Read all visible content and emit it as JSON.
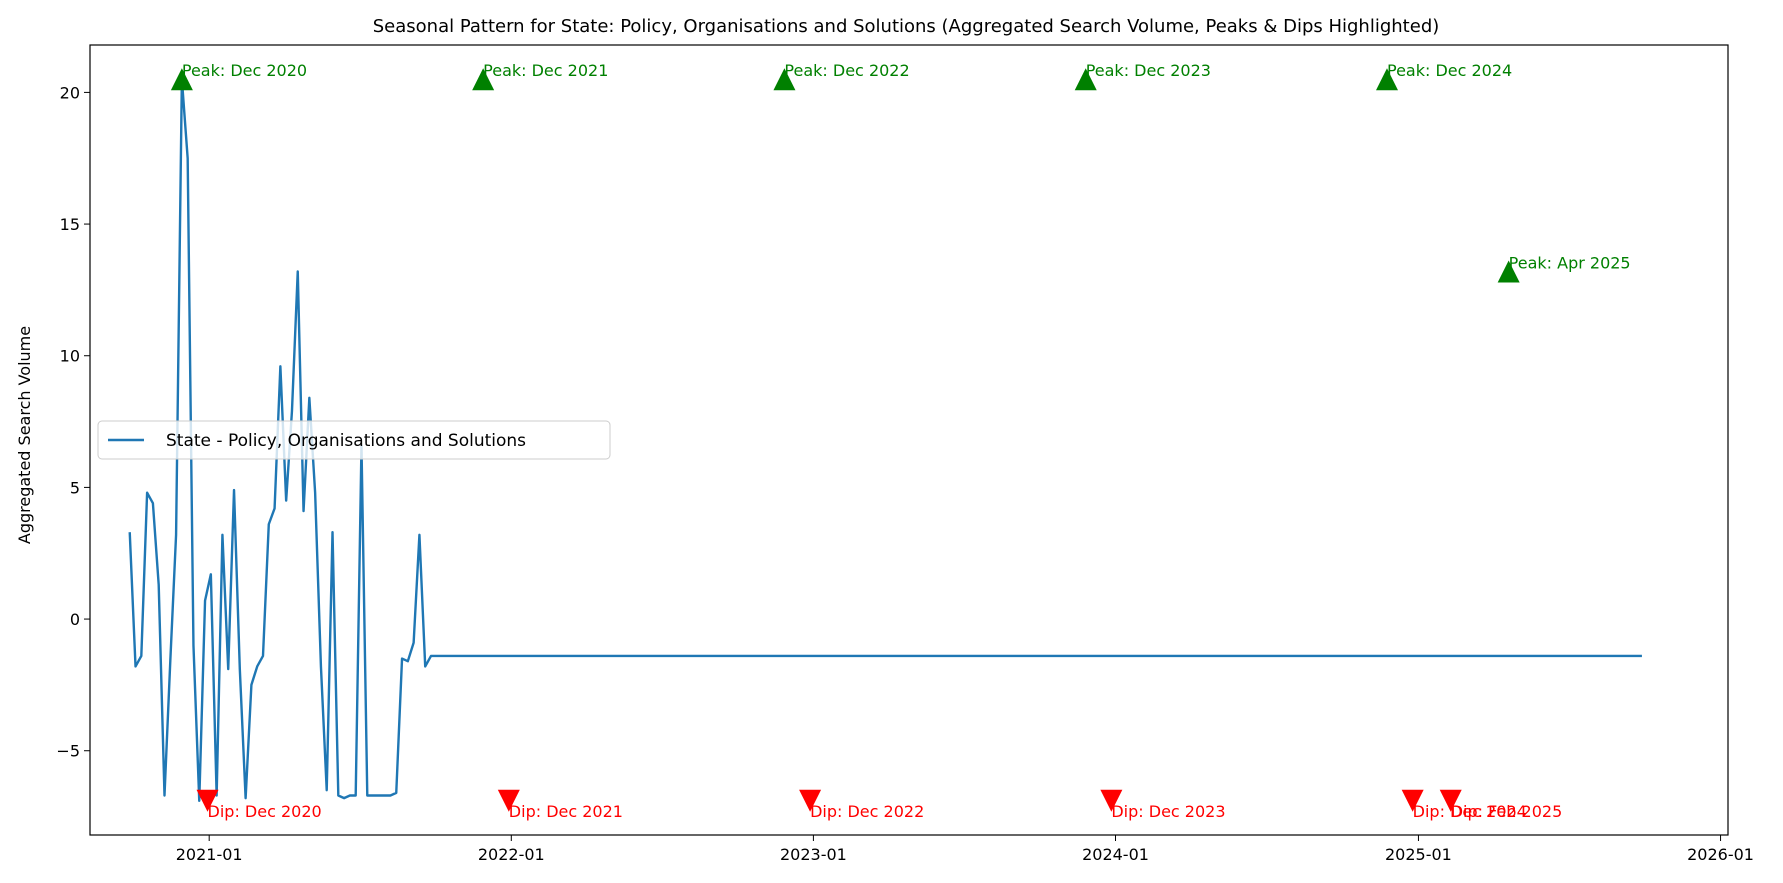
{
  "chart_data": {
    "type": "line",
    "title": "Seasonal Pattern for State: Policy, Organisations and Solutions (Aggregated Search Volume, Peaks & Dips Highlighted)",
    "xlabel": "",
    "ylabel": "Aggregated Search Volume",
    "xlim": [
      "2020-08-10",
      "2026-01-10"
    ],
    "ylim": [
      -8.2,
      21.8
    ],
    "x_ticks": [
      "2021-01",
      "2022-01",
      "2023-01",
      "2024-01",
      "2025-01",
      "2026-01"
    ],
    "y_ticks": [
      -5,
      0,
      5,
      10,
      15,
      20
    ],
    "y_tick_labels": [
      "−5",
      "0",
      "5",
      "10",
      "15",
      "20"
    ],
    "grid": false,
    "legend": {
      "position": "center-left",
      "entries": [
        "State - Policy, Organisations and Solutions"
      ]
    },
    "colors": {
      "line": "#1f77b4",
      "peak": "#008000",
      "dip": "#ff0000"
    },
    "series": [
      {
        "name": "State - Policy, Organisations and Solutions",
        "start": "2020-09-27",
        "interval_days": 7,
        "pattern": [
          3.3,
          -1.8,
          -1.4,
          4.8,
          4.4,
          1.3,
          -6.7,
          -1.6,
          3.2,
          20.5,
          17.5,
          -1.0,
          -6.9,
          0.7,
          1.7,
          -6.7,
          3.2,
          -1.9,
          4.9,
          -1.9,
          -6.8,
          -2.5,
          -1.8,
          -1.4,
          3.6,
          4.2,
          9.6,
          4.5,
          7.9,
          13.2,
          4.1,
          8.4,
          4.8,
          -1.8,
          -6.5,
          3.3,
          -6.7,
          -6.8,
          -6.7,
          -6.7,
          6.6,
          -6.7,
          -6.7,
          -6.7,
          -6.7,
          -6.7,
          -6.6,
          -1.5,
          -1.6,
          -0.9,
          3.2,
          -1.8,
          -1.4
        ],
        "repeat_from": "2021-09-26",
        "end": "2025-09-28"
      }
    ],
    "peaks": [
      {
        "date": "2020-11-29",
        "value": 20.5,
        "label": "Peak: Dec 2020"
      },
      {
        "date": "2021-11-28",
        "value": 20.5,
        "label": "Peak: Dec 2021"
      },
      {
        "date": "2022-11-27",
        "value": 20.5,
        "label": "Peak: Dec 2022"
      },
      {
        "date": "2023-11-26",
        "value": 20.5,
        "label": "Peak: Dec 2023"
      },
      {
        "date": "2024-11-24",
        "value": 20.5,
        "label": "Peak: Dec 2024"
      },
      {
        "date": "2025-04-20",
        "value": 13.2,
        "label": "Peak: Apr 2025"
      }
    ],
    "dips": [
      {
        "date": "2020-12-30",
        "value": -6.9,
        "label": "Dip: Dec 2020"
      },
      {
        "date": "2021-12-29",
        "value": -6.9,
        "label": "Dip: Dec 2021"
      },
      {
        "date": "2022-12-28",
        "value": -6.9,
        "label": "Dip: Dec 2022"
      },
      {
        "date": "2023-12-27",
        "value": -6.9,
        "label": "Dip: Dec 2023"
      },
      {
        "date": "2024-12-25",
        "value": -6.9,
        "label": "Dip: Dec 2024"
      },
      {
        "date": "2025-02-09",
        "value": -6.9,
        "label": "Dip: Feb 2025"
      }
    ]
  }
}
